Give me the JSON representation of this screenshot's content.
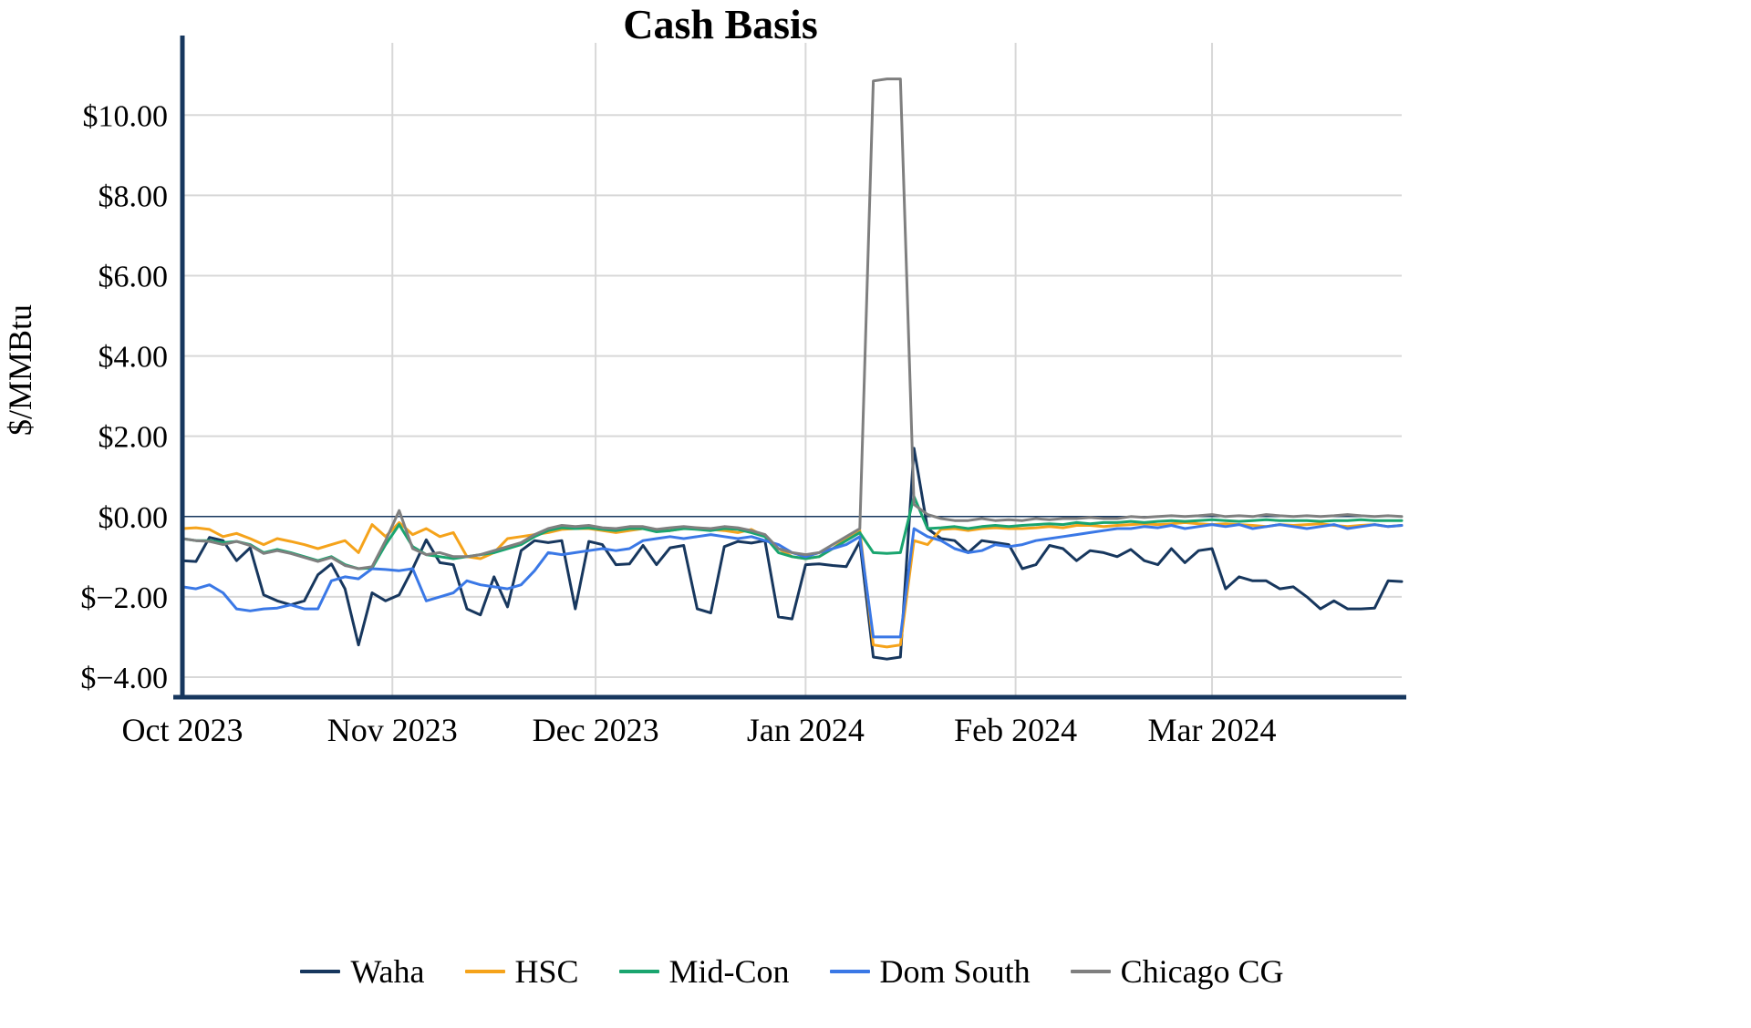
{
  "chart_data": {
    "type": "line",
    "title": "Cash Basis",
    "ylabel": "$/MMBtu",
    "xlabel": "",
    "ylim": [
      -4.5,
      11.8
    ],
    "grid": true,
    "legend_position": "bottom",
    "colors": {
      "axis": "#17375E",
      "zero_line": "#17375E",
      "grid": "#D8D8D8",
      "background": "#FFFFFF"
    },
    "y_axis": {
      "ticks": [
        {
          "value": 10,
          "label": "$10.00"
        },
        {
          "value": 8,
          "label": "$8.00"
        },
        {
          "value": 6,
          "label": "$6.00"
        },
        {
          "value": 4,
          "label": "$4.00"
        },
        {
          "value": 2,
          "label": "$2.00"
        },
        {
          "value": 0,
          "label": "$0.00"
        },
        {
          "value": -2,
          "label": "$−2.00"
        },
        {
          "value": -4,
          "label": "$−4.00"
        }
      ]
    },
    "x_axis": {
      "step_days": 2,
      "max_day": 180,
      "ticks": [
        {
          "day": 0,
          "label": "Oct 2023"
        },
        {
          "day": 31,
          "label": "Nov 2023"
        },
        {
          "day": 61,
          "label": "Dec 2023"
        },
        {
          "day": 92,
          "label": "Jan 2024"
        },
        {
          "day": 123,
          "label": "Feb 2024"
        },
        {
          "day": 152,
          "label": "Mar 2024"
        }
      ]
    },
    "series": [
      {
        "name": "Waha",
        "color": "#17375E",
        "values": [
          -1.1,
          -1.12,
          -0.52,
          -0.6,
          -1.1,
          -0.78,
          -1.95,
          -2.1,
          -2.2,
          -2.1,
          -1.45,
          -1.18,
          -1.8,
          -3.2,
          -1.9,
          -2.1,
          -1.95,
          -1.3,
          -0.58,
          -1.15,
          -1.2,
          -2.3,
          -2.45,
          -1.5,
          -2.25,
          -0.85,
          -0.6,
          -0.65,
          -0.6,
          -2.3,
          -0.62,
          -0.7,
          -1.2,
          -1.18,
          -0.72,
          -1.2,
          -0.78,
          -0.72,
          -2.3,
          -2.4,
          -0.75,
          -0.62,
          -0.66,
          -0.6,
          -2.5,
          -2.55,
          -1.2,
          -1.18,
          -1.22,
          -1.25,
          -0.62,
          -3.5,
          -3.55,
          -3.5,
          1.7,
          -0.3,
          -0.55,
          -0.6,
          -0.9,
          -0.6,
          -0.65,
          -0.7,
          -1.3,
          -1.2,
          -0.72,
          -0.8,
          -1.1,
          -0.85,
          -0.9,
          -1.0,
          -0.82,
          -1.1,
          -1.2,
          -0.8,
          -1.15,
          -0.85,
          -0.8,
          -1.8,
          -1.5,
          -1.6,
          -1.6,
          -1.8,
          -1.75,
          -2.0,
          -2.3,
          -2.1,
          -2.3,
          -2.3,
          -2.28,
          -1.6,
          -1.62
        ]
      },
      {
        "name": "HSC",
        "color": "#F5A31B",
        "values": [
          -0.3,
          -0.28,
          -0.32,
          -0.5,
          -0.42,
          -0.55,
          -0.7,
          -0.55,
          -0.62,
          -0.7,
          -0.8,
          -0.7,
          -0.6,
          -0.9,
          -0.2,
          -0.5,
          -0.15,
          -0.45,
          -0.3,
          -0.5,
          -0.4,
          -1.0,
          -1.05,
          -0.9,
          -0.55,
          -0.5,
          -0.45,
          -0.4,
          -0.32,
          -0.3,
          -0.3,
          -0.35,
          -0.4,
          -0.35,
          -0.3,
          -0.32,
          -0.35,
          -0.3,
          -0.28,
          -0.32,
          -0.35,
          -0.4,
          -0.32,
          -0.5,
          -0.8,
          -1.0,
          -1.05,
          -1.0,
          -0.8,
          -0.55,
          -0.35,
          -3.2,
          -3.25,
          -3.2,
          -0.6,
          -0.7,
          -0.32,
          -0.3,
          -0.35,
          -0.3,
          -0.28,
          -0.3,
          -0.3,
          -0.28,
          -0.25,
          -0.28,
          -0.22,
          -0.22,
          -0.25,
          -0.22,
          -0.2,
          -0.18,
          -0.2,
          -0.18,
          -0.15,
          -0.18,
          -0.2,
          -0.18,
          -0.2,
          -0.22,
          -0.25,
          -0.2,
          -0.22,
          -0.2,
          -0.18,
          -0.22,
          -0.25,
          -0.22,
          -0.2,
          -0.25,
          -0.22
        ]
      },
      {
        "name": "Mid-Con",
        "color": "#1AA56F",
        "values": [
          -0.55,
          -0.6,
          -0.6,
          -0.65,
          -0.62,
          -0.7,
          -0.9,
          -0.82,
          -0.9,
          -1.0,
          -1.1,
          -1.0,
          -1.2,
          -1.3,
          -1.28,
          -0.7,
          -0.2,
          -0.75,
          -0.95,
          -1.0,
          -1.05,
          -1.0,
          -0.95,
          -0.9,
          -0.8,
          -0.7,
          -0.5,
          -0.35,
          -0.28,
          -0.3,
          -0.28,
          -0.32,
          -0.35,
          -0.3,
          -0.3,
          -0.38,
          -0.35,
          -0.3,
          -0.32,
          -0.35,
          -0.3,
          -0.32,
          -0.4,
          -0.5,
          -0.9,
          -1.0,
          -1.05,
          -1.0,
          -0.8,
          -0.6,
          -0.4,
          -0.9,
          -0.92,
          -0.9,
          0.5,
          -0.3,
          -0.28,
          -0.25,
          -0.3,
          -0.25,
          -0.22,
          -0.25,
          -0.22,
          -0.2,
          -0.18,
          -0.2,
          -0.15,
          -0.18,
          -0.15,
          -0.15,
          -0.12,
          -0.15,
          -0.12,
          -0.1,
          -0.12,
          -0.1,
          -0.08,
          -0.1,
          -0.12,
          -0.1,
          -0.08,
          -0.1,
          -0.1,
          -0.1,
          -0.12,
          -0.1,
          -0.1,
          -0.08,
          -0.1,
          -0.1,
          -0.1
        ]
      },
      {
        "name": "Dom South",
        "color": "#3A78E6",
        "values": [
          -1.75,
          -1.8,
          -1.7,
          -1.9,
          -2.3,
          -2.35,
          -2.3,
          -2.28,
          -2.2,
          -2.3,
          -2.3,
          -1.6,
          -1.5,
          -1.55,
          -1.3,
          -1.32,
          -1.35,
          -1.3,
          -2.1,
          -2.0,
          -1.9,
          -1.6,
          -1.7,
          -1.75,
          -1.8,
          -1.7,
          -1.35,
          -0.9,
          -0.95,
          -0.9,
          -0.85,
          -0.8,
          -0.85,
          -0.8,
          -0.6,
          -0.55,
          -0.5,
          -0.55,
          -0.5,
          -0.45,
          -0.5,
          -0.55,
          -0.5,
          -0.6,
          -0.7,
          -0.9,
          -1.0,
          -0.9,
          -0.8,
          -0.7,
          -0.5,
          -3.0,
          -3.0,
          -3.0,
          -0.3,
          -0.5,
          -0.6,
          -0.8,
          -0.9,
          -0.85,
          -0.7,
          -0.75,
          -0.7,
          -0.6,
          -0.55,
          -0.5,
          -0.45,
          -0.4,
          -0.35,
          -0.3,
          -0.3,
          -0.25,
          -0.28,
          -0.22,
          -0.3,
          -0.25,
          -0.2,
          -0.25,
          -0.2,
          -0.3,
          -0.25,
          -0.2,
          -0.25,
          -0.3,
          -0.25,
          -0.2,
          -0.3,
          -0.25,
          -0.2,
          -0.25,
          -0.22
        ]
      },
      {
        "name": "Chicago CG",
        "color": "#7F7F7F",
        "values": [
          -0.55,
          -0.6,
          -0.62,
          -0.7,
          -0.62,
          -0.72,
          -0.92,
          -0.85,
          -0.92,
          -1.02,
          -1.12,
          -1.02,
          -1.22,
          -1.3,
          -1.25,
          -0.6,
          0.15,
          -0.8,
          -0.95,
          -0.9,
          -1.0,
          -1.0,
          -0.95,
          -0.85,
          -0.75,
          -0.65,
          -0.45,
          -0.3,
          -0.22,
          -0.25,
          -0.22,
          -0.28,
          -0.3,
          -0.25,
          -0.25,
          -0.32,
          -0.28,
          -0.25,
          -0.28,
          -0.3,
          -0.25,
          -0.28,
          -0.35,
          -0.45,
          -0.8,
          -0.9,
          -0.95,
          -0.9,
          -0.7,
          -0.5,
          -0.3,
          10.85,
          10.9,
          10.9,
          0.3,
          0.05,
          -0.05,
          -0.1,
          -0.1,
          -0.05,
          -0.1,
          -0.08,
          -0.1,
          -0.05,
          -0.08,
          -0.05,
          -0.05,
          -0.02,
          -0.05,
          -0.05,
          0.0,
          -0.02,
          0.0,
          0.02,
          0.0,
          0.02,
          0.05,
          0.0,
          0.02,
          0.0,
          0.05,
          0.02,
          0.0,
          0.02,
          0.0,
          0.02,
          0.05,
          0.02,
          0.0,
          0.02,
          0.0
        ]
      }
    ]
  }
}
